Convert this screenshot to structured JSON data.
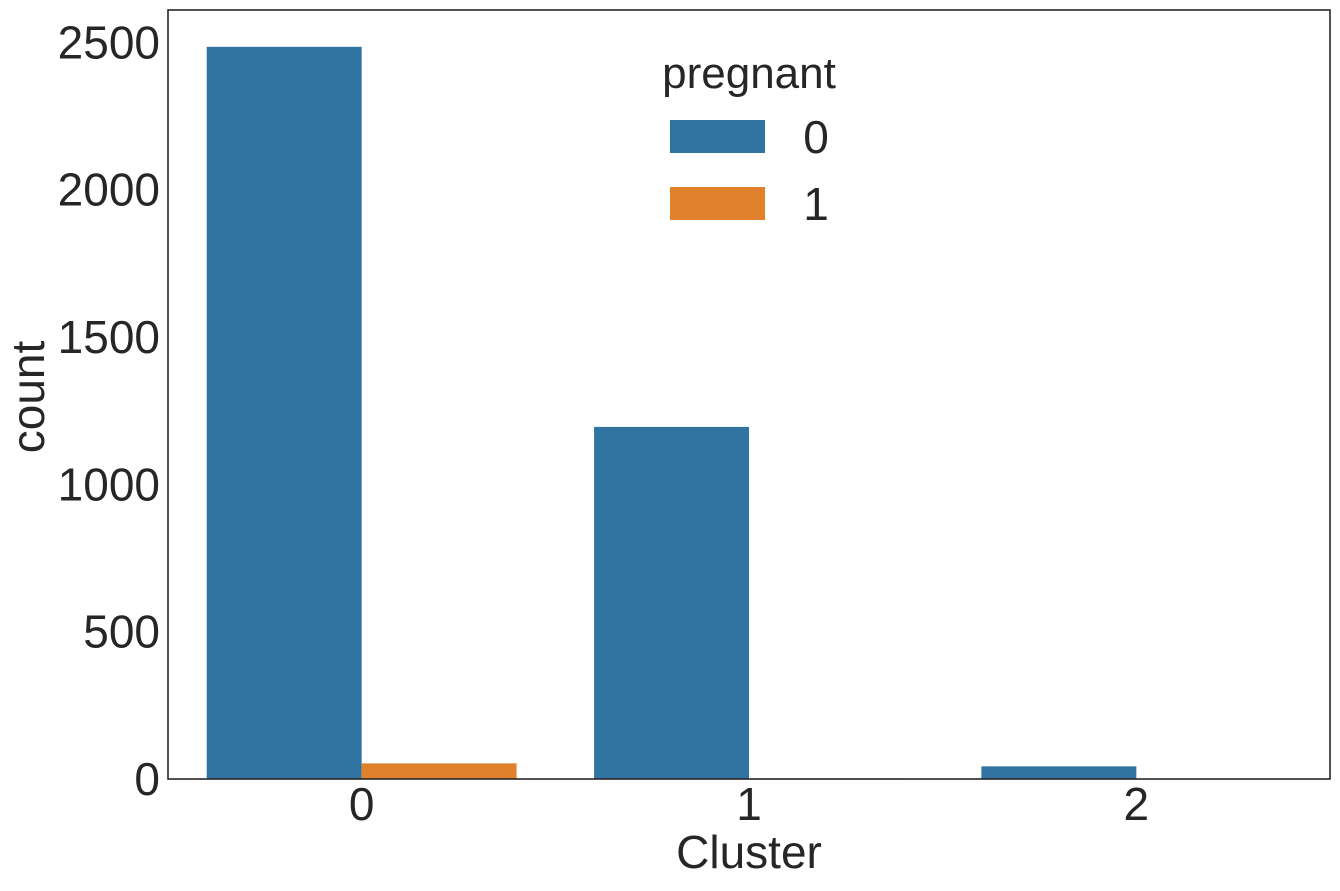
{
  "chart_data": {
    "type": "bar",
    "xlabel": "Cluster",
    "ylabel": "count",
    "categories": [
      "0",
      "1",
      "2"
    ],
    "series": [
      {
        "name": "0",
        "color": "#3274a1",
        "values": [
          2485,
          1195,
          43
        ]
      },
      {
        "name": "1",
        "color": "#e1812c",
        "values": [
          53,
          2,
          0
        ]
      }
    ],
    "yticks": [
      0,
      500,
      1000,
      1500,
      2000,
      2500
    ],
    "ylim": [
      0,
      2610
    ],
    "grid": false,
    "legend": {
      "title": "pregnant",
      "placement": "upper center",
      "entries": [
        "0",
        "1"
      ]
    }
  }
}
